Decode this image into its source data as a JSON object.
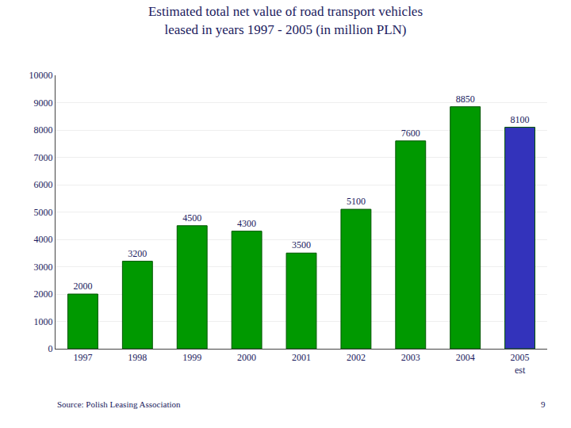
{
  "chart_data": {
    "type": "bar",
    "title": "Estimated total net value of road transport vehicles",
    "subtitle": "leased in years 1997 - 2005 (in million PLN)",
    "categories": [
      "1997",
      "1998",
      "1999",
      "2000",
      "2001",
      "2002",
      "2003",
      "2004",
      "2005\nest"
    ],
    "values": [
      2000,
      3200,
      4500,
      4300,
      3500,
      5100,
      7600,
      8850,
      8100
    ],
    "colors": [
      "#009900",
      "#009900",
      "#009900",
      "#009900",
      "#009900",
      "#009900",
      "#009900",
      "#009900",
      "#3333bb"
    ],
    "ylim": [
      0,
      10000
    ],
    "yticks": [
      0,
      1000,
      2000,
      3000,
      4000,
      5000,
      6000,
      7000,
      8000,
      9000,
      10000
    ],
    "grid": true,
    "data_labels": true,
    "annotations": [
      "Source: Polish Leasing Association",
      "9"
    ]
  }
}
